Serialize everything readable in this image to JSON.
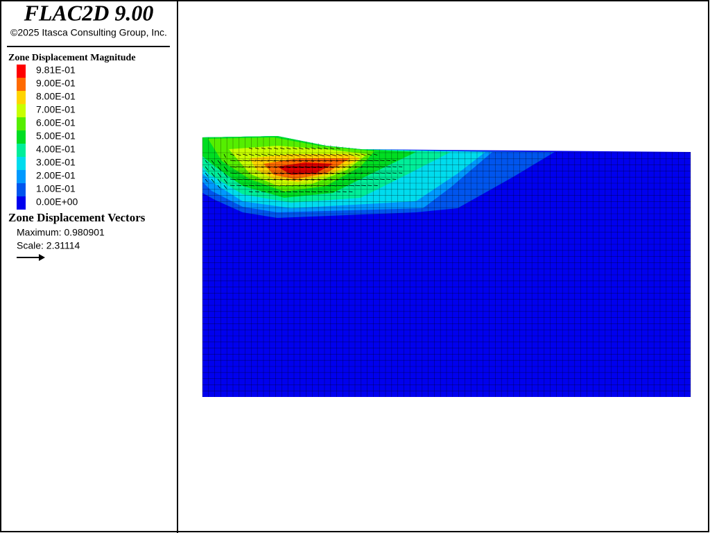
{
  "header": {
    "title": "FLAC2D 9.00",
    "copyright": "©2025 Itasca Consulting Group, Inc."
  },
  "legend": {
    "title": "Zone Displacement Magnitude",
    "entries": [
      {
        "label": "9.81E-01",
        "color": "#ff0000"
      },
      {
        "label": "9.00E-01",
        "color": "#ff6a00"
      },
      {
        "label": "8.00E-01",
        "color": "#ffd400"
      },
      {
        "label": "7.00E-01",
        "color": "#c8ff00"
      },
      {
        "label": "6.00E-01",
        "color": "#55ee00"
      },
      {
        "label": "5.00E-01",
        "color": "#00dd22"
      },
      {
        "label": "4.00E-01",
        "color": "#00ee99"
      },
      {
        "label": "3.00E-01",
        "color": "#00dcee"
      },
      {
        "label": "2.00E-01",
        "color": "#0099ff"
      },
      {
        "label": "1.00E-01",
        "color": "#0055ee"
      },
      {
        "label": "0.00E+00",
        "color": "#0000ee"
      }
    ]
  },
  "vectors": {
    "title": "Zone Displacement Vectors",
    "maximum": "Maximum: 0.980901",
    "scale": "Scale: 2.31114"
  }
}
